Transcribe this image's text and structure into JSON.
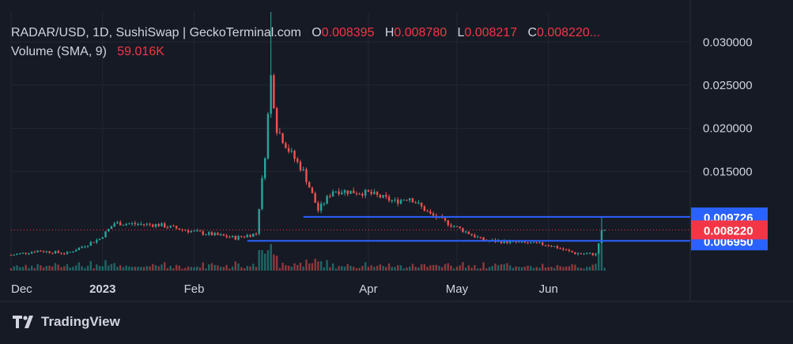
{
  "legend": {
    "symbol_line": "RADAR/USD, 1D, SushiSwap | GeckoTerminal.com",
    "open_label": "O",
    "open_value": "0.008395",
    "high_label": "H",
    "high_value": "0.008780",
    "low_label": "L",
    "low_value": "0.008217",
    "close_label": "C",
    "close_value": "0.008220...",
    "volume_label": "Volume (SMA, 9)",
    "volume_value": "59.016K"
  },
  "brand": {
    "name": "TradingView",
    "logo_icon": "tradingview-logo-icon"
  },
  "colors": {
    "background": "#161a25",
    "up": "#26a69a",
    "down": "#ef5350",
    "level_line": "#2962ff",
    "last_price": "#f23645",
    "text": "#d1d4dc"
  },
  "chart_data": {
    "type": "candlestick",
    "y_axis": {
      "ylim": [
        0.0035,
        0.0335
      ],
      "ticks": [
        "0.030000",
        "0.025000",
        "0.020000",
        "0.015000"
      ],
      "tick_values": [
        0.03,
        0.025,
        0.02,
        0.015
      ],
      "side": "right"
    },
    "x_axis": {
      "labels": [
        {
          "label": "Dec",
          "date": "2022-12-01"
        },
        {
          "label": "2023",
          "date": "2023-01-01"
        },
        {
          "label": "Feb",
          "date": "2023-02-01"
        },
        {
          "label": "Apr",
          "date": "2023-04-01"
        },
        {
          "label": "May",
          "date": "2023-05-01"
        },
        {
          "label": "Jun",
          "date": "2023-06-01"
        }
      ],
      "range": [
        "2022-12-01",
        "2023-07-19"
      ]
    },
    "horizontal_levels": [
      {
        "value": 0.009726,
        "label": "0.009726",
        "start": "2023-03-10",
        "color": "#2962ff"
      },
      {
        "value": 0.00695,
        "label": "0.006950",
        "start": "2023-02-19",
        "color": "#2962ff"
      }
    ],
    "last_price": {
      "value": 0.00822,
      "label": "0.008220",
      "color": "#f23645"
    },
    "series": [
      {
        "date": "2022-12-01",
        "close": 0.0053
      },
      {
        "date": "2022-12-10",
        "close": 0.0058
      },
      {
        "date": "2022-12-20",
        "close": 0.0055
      },
      {
        "date": "2022-12-31",
        "close": 0.0072
      },
      {
        "date": "2023-01-05",
        "close": 0.009
      },
      {
        "date": "2023-01-20",
        "close": 0.0088
      },
      {
        "date": "2023-02-01",
        "close": 0.008
      },
      {
        "date": "2023-02-15",
        "close": 0.0073
      },
      {
        "date": "2023-02-22",
        "close": 0.0078
      },
      {
        "date": "2023-02-25",
        "close": 0.017
      },
      {
        "date": "2023-02-27",
        "close": 0.026,
        "high": 0.0335
      },
      {
        "date": "2023-03-01",
        "close": 0.02
      },
      {
        "date": "2023-03-05",
        "close": 0.0175
      },
      {
        "date": "2023-03-10",
        "close": 0.015
      },
      {
        "date": "2023-03-15",
        "close": 0.0105
      },
      {
        "date": "2023-03-20",
        "close": 0.0128
      },
      {
        "date": "2023-04-01",
        "close": 0.0125
      },
      {
        "date": "2023-04-10",
        "close": 0.0115
      },
      {
        "date": "2023-04-15",
        "close": 0.012
      },
      {
        "date": "2023-04-22",
        "close": 0.01
      },
      {
        "date": "2023-05-01",
        "close": 0.0085
      },
      {
        "date": "2023-05-10",
        "close": 0.007
      },
      {
        "date": "2023-05-20",
        "close": 0.0068
      },
      {
        "date": "2023-06-01",
        "close": 0.0065
      },
      {
        "date": "2023-06-10",
        "close": 0.0055
      },
      {
        "date": "2023-06-17",
        "close": 0.0054
      },
      {
        "date": "2023-06-19",
        "close": 0.008,
        "high": 0.0097
      },
      {
        "date": "2023-06-20",
        "close": 0.00822
      }
    ]
  }
}
